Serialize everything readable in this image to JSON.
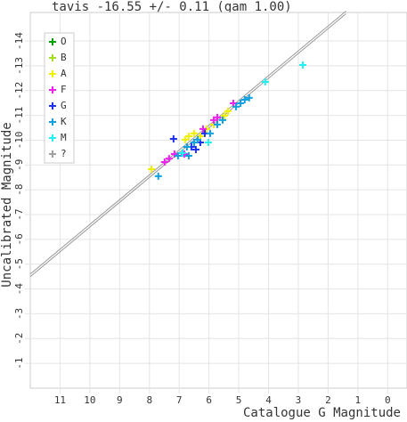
{
  "chart_data": {
    "type": "scatter",
    "title": "tavis -16.55 +/- 0.11 (gam 1.00)",
    "x_label": "Catalogue G Magnitude",
    "y_label": "Uncalibrated Magnitude",
    "xlim": [
      12,
      -0.65
    ],
    "ylim": [
      0,
      -15.15
    ],
    "xticks": [
      11,
      10,
      9,
      8,
      7,
      6,
      5,
      4,
      3,
      2,
      1,
      0
    ],
    "yticks": [
      -1,
      -2,
      -3,
      -4,
      -5,
      -6,
      -7,
      -8,
      -9,
      -10,
      -11,
      -12,
      -13,
      -14
    ],
    "grid": true,
    "legend": "upper left",
    "fit_line": {
      "color": "#999999",
      "x": [
        12,
        1.4
      ],
      "y": [
        -4.55,
        -15.15
      ]
    },
    "series": [
      {
        "name": "O",
        "color": "#00a000",
        "x": [],
        "y": []
      },
      {
        "name": "B",
        "color": "#a0e020",
        "x": [],
        "y": []
      },
      {
        "name": "A",
        "color": "#f0f000",
        "x": [
          7.93,
          6.8,
          6.68,
          6.5,
          6.29,
          6.08,
          5.84,
          5.48,
          5.36
        ],
        "y": [
          -8.83,
          -10.02,
          -10.16,
          -10.27,
          -10.16,
          -10.45,
          -10.63,
          -10.99,
          -11.17
        ]
      },
      {
        "name": "F",
        "color": "#f020f0",
        "x": [
          7.49,
          7.34,
          7.16,
          6.83,
          6.2,
          5.84,
          5.72,
          5.18
        ],
        "y": [
          -9.12,
          -9.26,
          -9.44,
          -9.44,
          -10.45,
          -10.81,
          -10.92,
          -11.49
        ]
      },
      {
        "name": "G",
        "color": "#2030f0",
        "x": [
          7.19,
          6.59,
          6.29,
          6.44,
          6.14
        ],
        "y": [
          -10.05,
          -9.73,
          -9.91,
          -9.62,
          -10.27
        ]
      },
      {
        "name": "K",
        "color": "#10a0e0",
        "x": [
          7.7,
          7.04,
          6.89,
          6.74,
          6.68,
          6.5,
          6.38,
          5.96,
          5.72,
          5.54,
          5.09,
          4.94,
          4.8,
          4.65
        ],
        "y": [
          -8.55,
          -9.37,
          -9.48,
          -9.73,
          -9.37,
          -9.91,
          -10.02,
          -10.27,
          -10.63,
          -10.81,
          -11.35,
          -11.49,
          -11.63,
          -11.71
        ]
      },
      {
        "name": "M",
        "color": "#20f0f0",
        "x": [
          2.85,
          4.11,
          6.89,
          6.02
        ],
        "y": [
          -13.03,
          -12.35,
          -9.48,
          -9.91
        ]
      },
      {
        "name": "?",
        "color": "#a0a0a0",
        "x": [],
        "y": []
      }
    ]
  }
}
